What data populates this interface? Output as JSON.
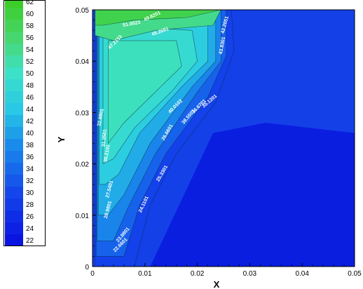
{
  "chart_data": {
    "type": "heatmap",
    "xlabel": "X",
    "ylabel": "Y",
    "xlim": [
      0,
      0.05
    ],
    "ylim": [
      0,
      0.05
    ],
    "x_ticks": [
      "0",
      "0.01",
      "0.02",
      "0.03",
      "0.04",
      "0.05"
    ],
    "y_ticks": [
      "0",
      "0.01",
      "0.02",
      "0.03",
      "0.04",
      "0.05"
    ],
    "colorbar_levels": [
      "62",
      "60",
      "58",
      "56",
      "54",
      "52",
      "50",
      "48",
      "46",
      "44",
      "42",
      "40",
      "38",
      "36",
      "34",
      "32",
      "30",
      "28",
      "26",
      "24",
      "22"
    ],
    "colors": {
      "background_field": "#1440e8",
      "low": "#0a1ee0",
      "high": "#38d020"
    },
    "contour_labels": [
      "49.8201",
      "51.0023",
      "47.2153",
      "45.2651",
      "43.8301",
      "42.2051",
      "40.0102",
      "38.5501",
      "36.6701",
      "35.1201",
      "32.8801",
      "31.3501",
      "30.2101",
      "28.9801",
      "27.5401",
      "26.6601",
      "25.3301",
      "24.1101",
      "23.8801",
      "22.6601"
    ]
  }
}
